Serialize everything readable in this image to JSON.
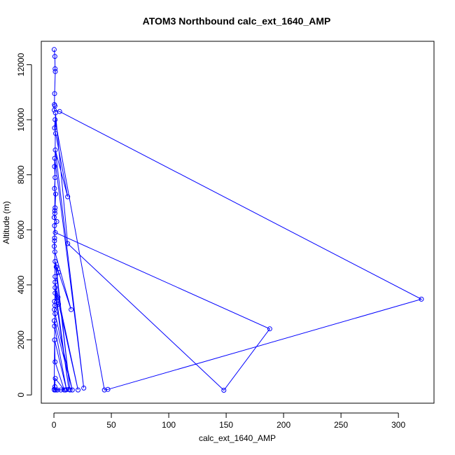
{
  "chart_data": {
    "type": "line",
    "title": "ATOM3 Northbound calc_ext_1640_AMP",
    "xlabel": "calc_ext_1640_AMP",
    "ylabel": "Altitude (m)",
    "xlim": [
      -11,
      331
    ],
    "ylim": [
      -300,
      12850
    ],
    "x_ticks": [
      0,
      50,
      100,
      150,
      200,
      250,
      300
    ],
    "y_ticks": [
      0,
      2000,
      4000,
      6000,
      8000,
      10000,
      12000
    ],
    "grid": false,
    "legend": "none",
    "series_color": "#0000ff",
    "marker": "open-circle",
    "series": [
      {
        "values": [
          [
            0.2,
            12550
          ],
          [
            0.8,
            12300
          ],
          [
            1.0,
            11850
          ],
          [
            1.2,
            11750
          ],
          [
            0.6,
            10950
          ],
          [
            0.4,
            10550
          ],
          [
            0.9,
            10500
          ],
          [
            0.3,
            10350
          ],
          [
            5.0,
            10300
          ],
          [
            320,
            3480
          ],
          [
            47,
            200
          ],
          [
            44,
            180
          ],
          [
            1.0,
            10000
          ],
          [
            0.5,
            9700
          ],
          [
            1.5,
            9500
          ],
          [
            12,
            7200
          ],
          [
            1.2,
            8900
          ],
          [
            26,
            250
          ],
          [
            0.7,
            8600
          ],
          [
            0.5,
            8300
          ],
          [
            1.0,
            7900
          ],
          [
            0.5,
            7500
          ],
          [
            1.5,
            7300
          ],
          [
            1.0,
            6800
          ],
          [
            0.8,
            6600
          ],
          [
            0.2,
            6450
          ],
          [
            2.5,
            6300
          ],
          [
            0.5,
            6150
          ],
          [
            1.2,
            5900
          ],
          [
            188,
            2400
          ],
          [
            148,
            170
          ],
          [
            12,
            5500
          ],
          [
            1.3,
            10250
          ],
          [
            0.6,
            5700
          ],
          [
            0.3,
            5400
          ],
          [
            0.8,
            5200
          ],
          [
            15,
            3100
          ],
          [
            1.0,
            4850
          ],
          [
            14,
            180
          ],
          [
            2.0,
            4650
          ],
          [
            4.0,
            4450
          ],
          [
            1.0,
            4100
          ],
          [
            21,
            180
          ],
          [
            1.0,
            3900
          ],
          [
            13,
            200
          ],
          [
            1.0,
            3700
          ],
          [
            3.5,
            3550
          ],
          [
            0.5,
            3400
          ],
          [
            0.8,
            3250
          ],
          [
            4.0,
            3300
          ],
          [
            0.4,
            3100
          ],
          [
            1.0,
            2950
          ],
          [
            16,
            180
          ],
          [
            0.3,
            2700
          ],
          [
            0.5,
            2500
          ],
          [
            11,
            190
          ],
          [
            0.6,
            2000
          ],
          [
            1.0,
            1200
          ],
          [
            9,
            180
          ],
          [
            1.2,
            600
          ],
          [
            0.8,
            300
          ],
          [
            0.4,
            180
          ],
          [
            1.5,
            180
          ],
          [
            3.0,
            180
          ],
          [
            6.0,
            180
          ],
          [
            10,
            180
          ],
          [
            0.2,
            200
          ],
          [
            1.0,
            4300
          ],
          [
            0.5,
            5600
          ],
          [
            0.7,
            6700
          ]
        ]
      }
    ]
  }
}
